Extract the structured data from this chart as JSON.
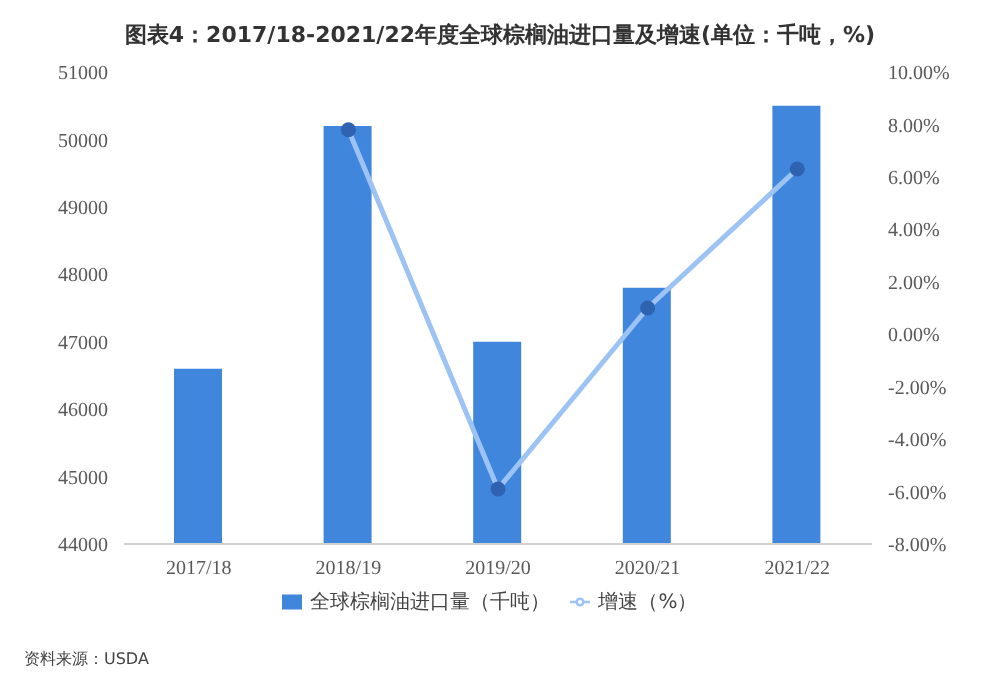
{
  "chart_data": {
    "type": "bar",
    "title": "图表4：2017/18-2021/22年度全球棕榈油进口量及增速(单位：千吨，%)",
    "categories": [
      "2017/18",
      "2018/19",
      "2019/20",
      "2020/21",
      "2021/22"
    ],
    "series": [
      {
        "name": "全球棕榈油进口量（千吨）",
        "color": "#3f86dc",
        "values": [
          46600,
          50200,
          47000,
          47800,
          50500
        ]
      },
      {
        "name": "增速（%）",
        "type": "line",
        "axis": "y2",
        "color": "#9cc3f3",
        "values": [
          null,
          7.8,
          -5.9,
          1.0,
          6.3
        ]
      }
    ],
    "ylim": [
      44000,
      51000
    ],
    "yticks": [
      44000,
      45000,
      46000,
      47000,
      48000,
      49000,
      50000,
      51000
    ],
    "y2lim": [
      -8,
      10
    ],
    "y2ticks": [
      {
        "value": -8,
        "label": "-8.00%"
      },
      {
        "value": -6,
        "label": "-6.00%"
      },
      {
        "value": -4,
        "label": "-4.00%"
      },
      {
        "value": -2,
        "label": "-2.00%"
      },
      {
        "value": 0,
        "label": "0.00%"
      },
      {
        "value": 2,
        "label": "2.00%"
      },
      {
        "value": 4,
        "label": "4.00%"
      },
      {
        "value": 6,
        "label": "6.00%"
      },
      {
        "value": 8,
        "label": "8.00%"
      },
      {
        "value": 10,
        "label": "10.00%"
      }
    ],
    "legend": "bottom",
    "marker": "circle",
    "annotations": [
      "资料来源：USDA"
    ]
  }
}
